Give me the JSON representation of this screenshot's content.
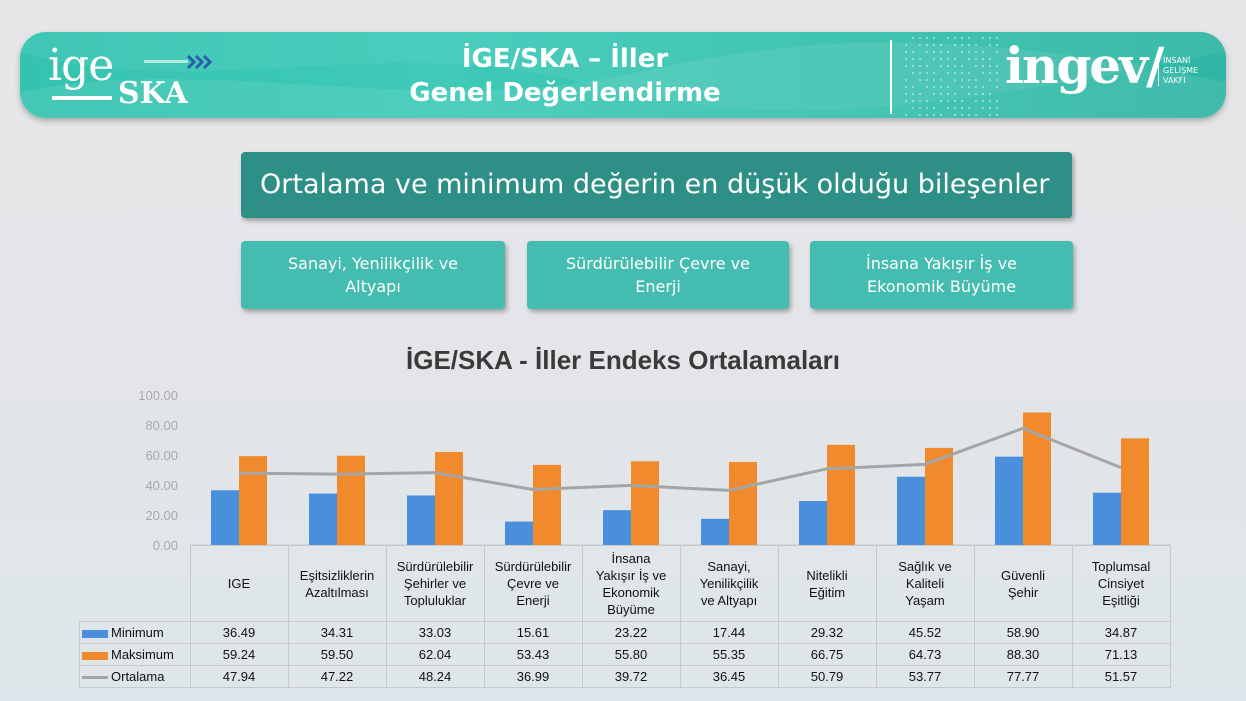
{
  "header": {
    "logo_left_top": "ige",
    "logo_left_bottom": "SKA",
    "title_line1": "İGE/SKA – İller",
    "title_line2": "Genel Değerlendirme",
    "logo_right": "ingev/",
    "logo_right_sub": [
      "İNSANİ",
      "GELİŞME",
      "VAKFI"
    ]
  },
  "headline": "Ortalama ve minimum değerin en düşük olduğu bileşenler",
  "components": [
    "Sanayi, Yenilikçilik ve Altyapı",
    "Sürdürülebilir Çevre ve Enerji",
    "İnsana Yakışır İş ve Ekonomik Büyüme"
  ],
  "chart_data": {
    "type": "bar",
    "title": "İGE/SKA -  İller Endeks Ortalamaları",
    "categories": [
      "IGE",
      "Eşitsizliklerin Azaltılması",
      "Sürdürülebilir Şehirler ve Topluluklar",
      "Sürdürülebilir Çevre ve Enerji",
      "İnsana Yakışır İş ve Ekonomik Büyüme",
      "Sanayi, Yenilikçilik ve Altyapı",
      "Nitelikli Eğitim",
      "Sağlık ve Kaliteli Yaşam",
      "Güvenli Şehir",
      "Toplumsal Cinsiyet Eşitliği"
    ],
    "category_lines": [
      [
        "IGE"
      ],
      [
        "Eşitsizliklerin",
        "Azaltılması"
      ],
      [
        "Sürdürülebilir",
        "Şehirler ve",
        "Topluluklar"
      ],
      [
        "Sürdürülebilir",
        "Çevre ve",
        "Enerji"
      ],
      [
        "İnsana",
        "Yakışır İş ve",
        "Ekonomik",
        "Büyüme"
      ],
      [
        "Sanayi,",
        "Yenilikçilik",
        "ve Altyapı"
      ],
      [
        "Nitelikli",
        "Eğitim"
      ],
      [
        "Sağlık ve",
        "Kaliteli",
        "Yaşam"
      ],
      [
        "Güvenli",
        "Şehir"
      ],
      [
        "Toplumsal",
        "Cinsiyet",
        "Eşitliği"
      ]
    ],
    "series": [
      {
        "name": "Minimum",
        "kind": "bar",
        "color": "#4a8fdc",
        "values": [
          36.49,
          34.31,
          33.03,
          15.61,
          23.22,
          17.44,
          29.32,
          45.52,
          58.9,
          34.87
        ],
        "labels": [
          "36.49",
          "34.31",
          "33.03",
          "15.61",
          "23.22",
          "17.44",
          "29.32",
          "45.52",
          "58.90",
          "34.87"
        ]
      },
      {
        "name": "Maksimum",
        "kind": "bar",
        "color": "#f08a2c",
        "values": [
          59.24,
          59.5,
          62.04,
          53.43,
          55.8,
          55.35,
          66.75,
          64.73,
          88.3,
          71.13
        ],
        "labels": [
          "59.24",
          "59.50",
          "62.04",
          "53.43",
          "55.80",
          "55.35",
          "66.75",
          "64.73",
          "88.30",
          "71.13"
        ]
      },
      {
        "name": "Ortalama",
        "kind": "line",
        "color": "#a5a5a5",
        "values": [
          47.94,
          47.22,
          48.24,
          36.99,
          39.72,
          36.45,
          50.79,
          53.77,
          77.77,
          51.57
        ],
        "labels": [
          "47.94",
          "47.22",
          "48.24",
          "36.99",
          "39.72",
          "36.45",
          "50.79",
          "53.77",
          "77.77",
          "51.57"
        ]
      }
    ],
    "yticks": [
      "0.00",
      "20.00",
      "40.00",
      "60.00",
      "80.00",
      "100.00"
    ],
    "ylim": [
      0,
      100
    ],
    "grid": false,
    "legend": "data-table"
  }
}
